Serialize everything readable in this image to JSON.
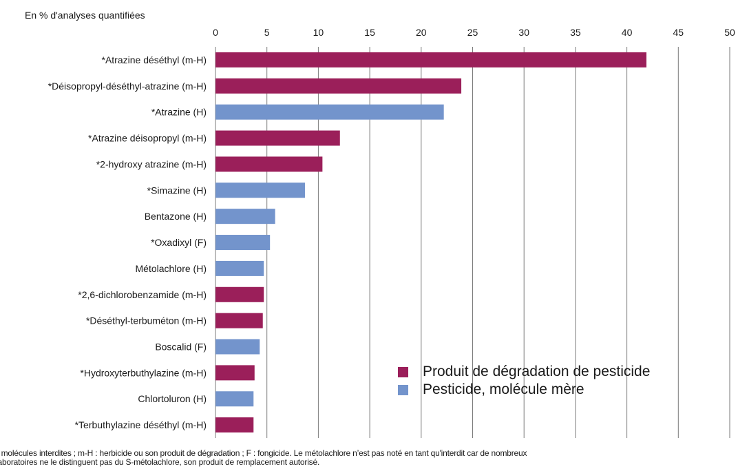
{
  "chart_data": {
    "type": "bar",
    "orientation": "horizontal",
    "unit_label": "En % d'analyses quantifiées",
    "xlim": [
      0,
      50
    ],
    "x_ticks": [
      0,
      5,
      10,
      15,
      20,
      25,
      30,
      35,
      40,
      45,
      50
    ],
    "grid": "vertical",
    "legend_position": "bottom-right",
    "series_colors": {
      "degradation": "#9b1f5a",
      "parent": "#7394cc"
    },
    "legend": [
      {
        "key": "degradation",
        "label": "Produit de dégradation de pesticide"
      },
      {
        "key": "parent",
        "label": "Pesticide, molécule mère"
      }
    ],
    "categories": [
      "*Atrazine déséthyl (m-H)",
      "*Déisopropyl-déséthyl-atrazine (m-H)",
      "*Atrazine (H)",
      "*Atrazine déisopropyl (m-H)",
      "*2-hydroxy atrazine (m-H)",
      "*Simazine (H)",
      "Bentazone (H)",
      "*Oxadixyl (F)",
      "Métolachlore (H)",
      "*2,6-dichlorobenzamide (m-H)",
      "*Déséthyl-terbuméton (m-H)",
      "Boscalid (F)",
      "*Hydroxyterbuthylazine (m-H)",
      "Chlortoluron (H)",
      "*Terbuthylazine déséthyl (m-H)"
    ],
    "values": [
      41.9,
      23.9,
      22.2,
      12.1,
      10.4,
      8.7,
      5.8,
      5.3,
      4.7,
      4.7,
      4.6,
      4.3,
      3.8,
      3.7,
      3.7
    ],
    "series_type": [
      "degradation",
      "degradation",
      "parent",
      "degradation",
      "degradation",
      "parent",
      "parent",
      "parent",
      "parent",
      "degradation",
      "degradation",
      "parent",
      "degradation",
      "parent",
      "degradation"
    ]
  },
  "footnote": [
    "* molécules interdites ; m-H : herbicide ou son produit de dégradation ; F : fongicide. Le métolachlore n’est pas noté en tant qu'interdit car de nombreux",
    "laboratoires ne le distinguent pas du S-métolachlore, son produit de remplacement autorisé."
  ]
}
